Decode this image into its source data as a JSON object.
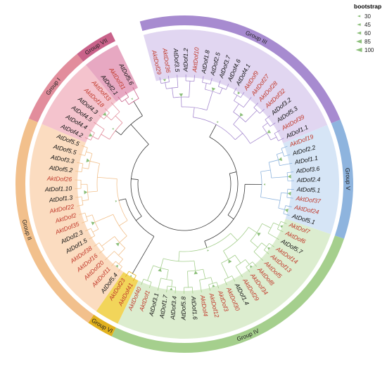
{
  "colors": {
    "at_label": "#111111",
    "akt_label": "#c0392b",
    "branch_default": "#3a3a3a",
    "bootstrap_marker": "#8cbf7a"
  },
  "groups": [
    {
      "name": "Group III",
      "start": 0,
      "end": 17,
      "color": "#a78bd0",
      "bg": "#e1d6f1"
    },
    {
      "name": "Group V",
      "start": 18,
      "end": 26,
      "color": "#8eb4de",
      "bg": "#d6e5f6"
    },
    {
      "name": "Group IV",
      "start": 27,
      "end": 47,
      "color": "#a5cf8d",
      "bg": "#dcedcf"
    },
    {
      "name": "Group VI",
      "start": 48,
      "end": 49,
      "color": "#e2b21e",
      "bg": "#f2d55a"
    },
    {
      "name": "Group II",
      "start": 50,
      "end": 66,
      "color": "#f2c08c",
      "bg": "#fbdcc0"
    },
    {
      "name": "Group I",
      "start": 67,
      "end": 72,
      "color": "#e28d9c",
      "bg": "#f4c3cd"
    },
    {
      "name": "Group VII",
      "start": 73,
      "end": 75,
      "color": "#c9628a",
      "bg": "#e7a8c2"
    }
  ],
  "leaves": [
    "AktDof29",
    "AktDof36",
    "AtDof3.5",
    "AtDof1.2",
    "AktDof10",
    "AtDof1.8",
    "AtDof2.5",
    "AtDof3.7",
    "AtDof4.6",
    "AtDof4.1",
    "AktDof9",
    "AktDof27",
    "AktDof28",
    "AktDof32",
    "AtDof3.2",
    "AtDof5.3",
    "AktDof39",
    "AtDof1.1",
    "AktDof19",
    "AtDof2.2",
    "AtDof1.1",
    "AtDof3.6",
    "AtDof2.4",
    "AtDof5.1",
    "AktDof37",
    "AktDof24",
    "AtDof5.1",
    "AktDof7",
    "AktDof6",
    "AtDof5.7",
    "AktDof14",
    "AktDof13",
    "AktDof5",
    "AktDof8",
    "AktDof34",
    "AktDof29",
    "AtDof1.4",
    "AktDof30",
    "AktDof3",
    "AktDof12",
    "AktDof4",
    "AtDof1.6",
    "AtDof5.8",
    "AtDof3.4",
    "AtDof1.7",
    "AtDof3.1",
    "AktDof1",
    "AktDof40",
    "AktDof41",
    "AktDof23",
    "AtDof5.4",
    "AktDof11",
    "AktDof20",
    "AktDof16",
    "AktDof38",
    "AtDof1.5",
    "AtDof2.3",
    "AktDof35",
    "AktDof2",
    "AktDof22",
    "AtDof1.3",
    "AtDof1.10",
    "AktDof26",
    "AtDof5.2",
    "AtDof3.3",
    "AtDof5.5",
    "AtDof5.5",
    "AtDof4.2",
    "AtDof4.4",
    "AtDof4.5",
    "AtDof4.3",
    "AktDof18",
    "AktDof33",
    "AtDof2.1",
    "AktDof31",
    "AtDof5.6"
  ],
  "legend": {
    "title": "bootstrap",
    "levels": [
      {
        "value": 30,
        "label": "30"
      },
      {
        "value": 45,
        "label": "45"
      },
      {
        "value": 60,
        "label": "60"
      },
      {
        "value": 85,
        "label": "85"
      },
      {
        "value": 100,
        "label": "100"
      }
    ]
  }
}
